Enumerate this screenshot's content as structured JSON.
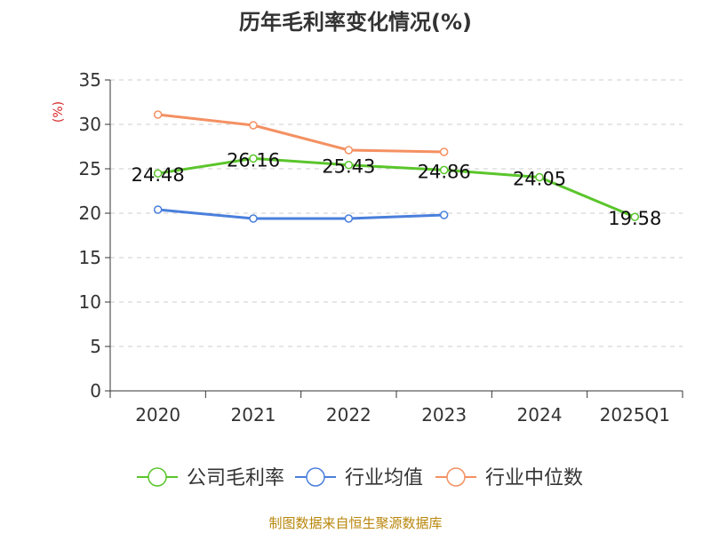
{
  "chart_data": {
    "type": "line",
    "title": "历年毛利率变化情况(%)",
    "ylabel": "(%)",
    "xlabel": "",
    "categories": [
      "2020",
      "2021",
      "2022",
      "2023",
      "2024",
      "2025Q1"
    ],
    "ylim": [
      0,
      35
    ],
    "yticks": [
      "0",
      "5",
      "10",
      "15",
      "20",
      "25",
      "30",
      "35"
    ],
    "grid": true,
    "legend_position": "bottom",
    "series": [
      {
        "name": "公司毛利率",
        "color": "#5ac52b",
        "values": [
          24.48,
          26.16,
          25.43,
          24.86,
          24.05,
          19.58
        ],
        "labels": [
          "24.48",
          "26.16",
          "25.43",
          "24.86",
          "24.05",
          "19.58"
        ]
      },
      {
        "name": "行业均值",
        "color": "#4a7fdc",
        "values": [
          20.4,
          19.4,
          19.4,
          19.8,
          null,
          null
        ]
      },
      {
        "name": "行业中位数",
        "color": "#f49062",
        "values": [
          31.1,
          29.9,
          27.1,
          26.9,
          null,
          null
        ]
      }
    ]
  },
  "footer": {
    "source": "制图数据来自恒生聚源数据库",
    "source_color": "#b8860b"
  }
}
